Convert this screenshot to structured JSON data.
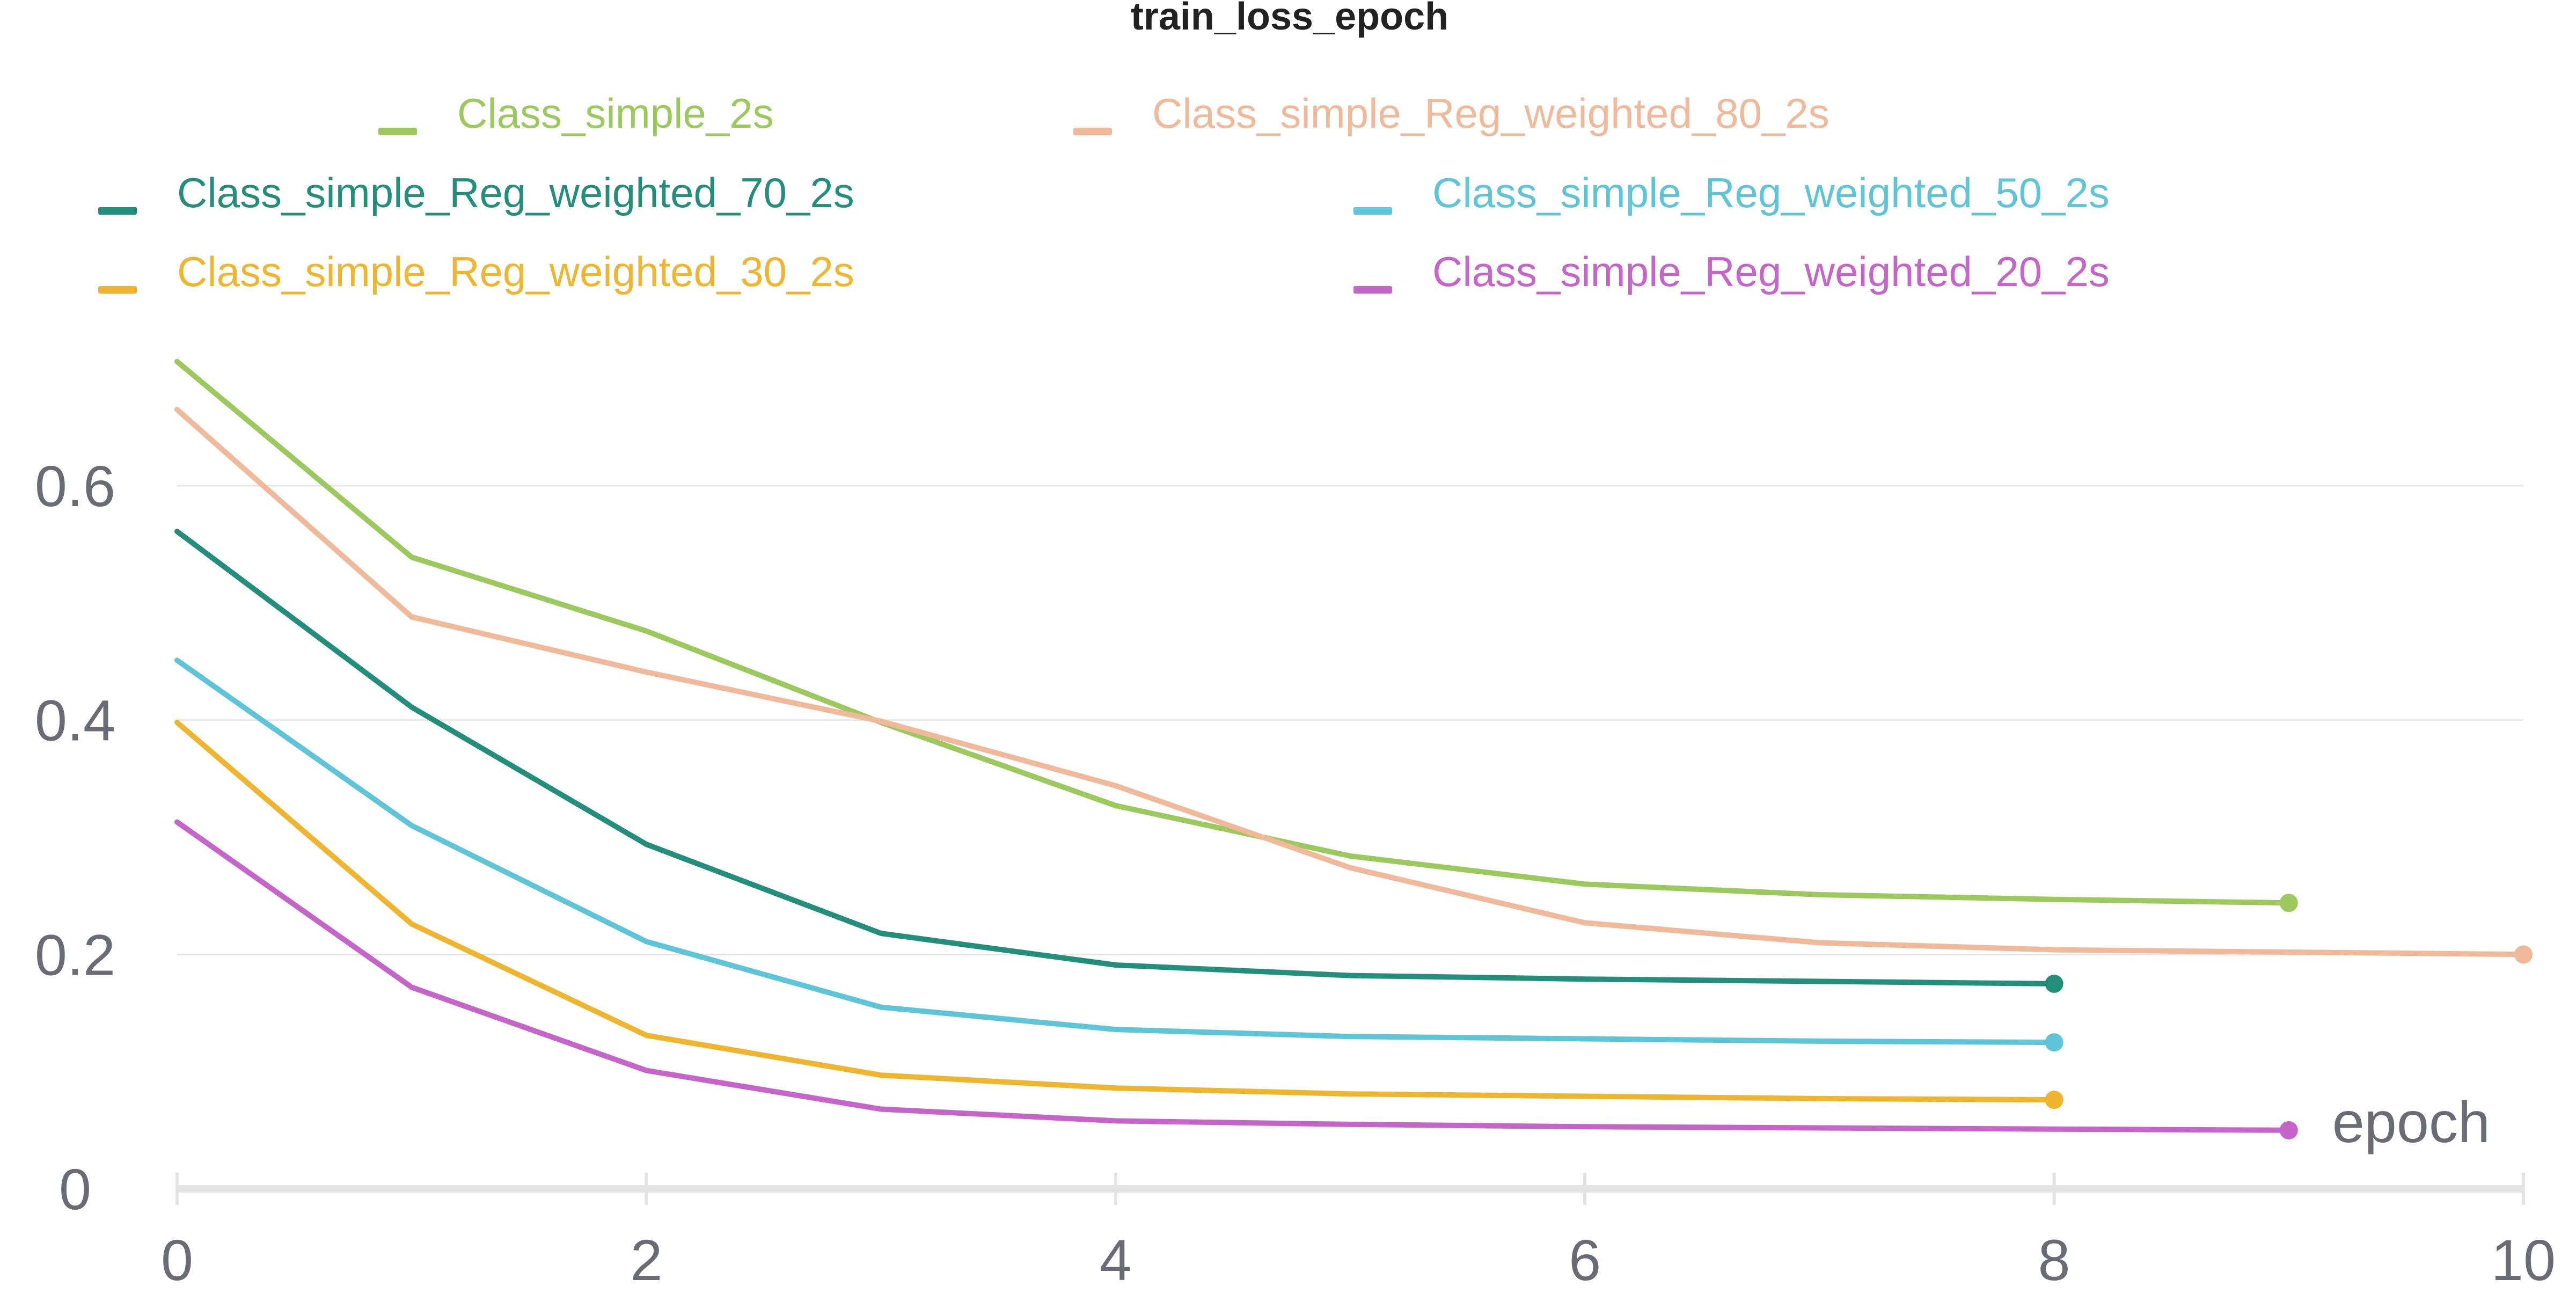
{
  "chart_data": {
    "type": "line",
    "title": "train_loss_epoch",
    "xlabel": "epoch",
    "ylabel": "",
    "xlim": [
      0,
      10
    ],
    "ylim": [
      0,
      0.72
    ],
    "x_ticks": [
      "0",
      "2",
      "4",
      "6",
      "8",
      "10"
    ],
    "y_ticks": [
      "0",
      "0.2",
      "0.4",
      "0.6"
    ],
    "grid": true,
    "legend_position": "top",
    "series": [
      {
        "name": "Class_simple_2s",
        "color": "#9bc95e",
        "x": [
          0,
          1,
          2,
          3,
          4,
          5,
          6,
          7,
          8,
          9
        ],
        "values": [
          0.706,
          0.539,
          0.476,
          0.398,
          0.327,
          0.284,
          0.26,
          0.251,
          0.247,
          0.244
        ]
      },
      {
        "name": "Class_simple_Reg_weighted_80_2s",
        "color": "#f0b99a",
        "x": [
          0,
          1,
          2,
          3,
          4,
          5,
          6,
          7,
          8,
          9,
          10
        ],
        "values": [
          0.665,
          0.488,
          0.441,
          0.399,
          0.344,
          0.274,
          0.227,
          0.21,
          0.204,
          0.202,
          0.2
        ]
      },
      {
        "name": "Class_simple_Reg_weighted_70_2s",
        "color": "#238e7c",
        "x": [
          0,
          1,
          2,
          3,
          4,
          5,
          6,
          7,
          8
        ],
        "values": [
          0.561,
          0.411,
          0.294,
          0.218,
          0.191,
          0.182,
          0.179,
          0.177,
          0.175
        ]
      },
      {
        "name": "Class_simple_Reg_weighted_50_2s",
        "color": "#5ec5d9",
        "x": [
          0,
          1,
          2,
          3,
          4,
          5,
          6,
          7,
          8
        ],
        "values": [
          0.451,
          0.31,
          0.211,
          0.155,
          0.136,
          0.13,
          0.128,
          0.126,
          0.125
        ]
      },
      {
        "name": "Class_simple_Reg_weighted_30_2s",
        "color": "#efb52e",
        "x": [
          0,
          1,
          2,
          3,
          4,
          5,
          6,
          7,
          8
        ],
        "values": [
          0.398,
          0.226,
          0.131,
          0.097,
          0.086,
          0.081,
          0.079,
          0.077,
          0.076
        ]
      },
      {
        "name": "Class_simple_Reg_weighted_20_2s",
        "color": "#c565c9",
        "x": [
          0,
          1,
          2,
          3,
          4,
          5,
          6,
          7,
          8,
          9
        ],
        "values": [
          0.313,
          0.172,
          0.101,
          0.068,
          0.058,
          0.055,
          0.053,
          0.052,
          0.051,
          0.05
        ]
      }
    ]
  }
}
